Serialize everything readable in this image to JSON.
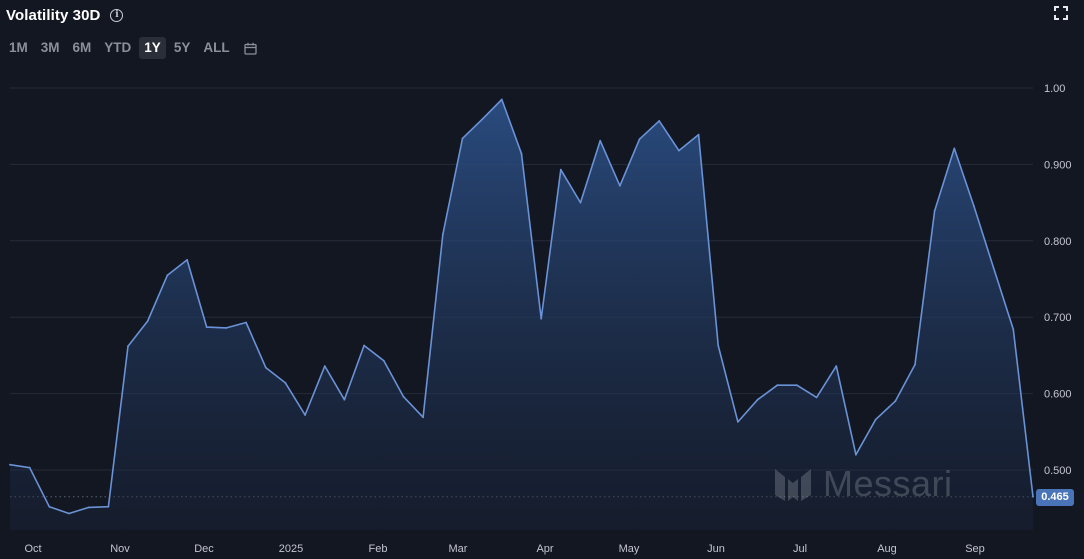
{
  "header": {
    "title": "Volatility 30D",
    "info_icon": "info-icon",
    "expand_icon": "expand-icon"
  },
  "ranges": {
    "items": [
      "1M",
      "3M",
      "6M",
      "YTD",
      "1Y",
      "5Y",
      "ALL"
    ],
    "active": "1Y",
    "calendar_icon": "calendar-icon"
  },
  "watermark": {
    "text": "Messari"
  },
  "colors": {
    "background": "#131722",
    "line": "#6a92d6",
    "tag": "#4a74b8"
  },
  "chart_data": {
    "type": "area",
    "title": "Volatility 30D",
    "ylim": [
      0.43,
      1.01
    ],
    "yticks": [
      1.0,
      0.9,
      0.8,
      0.7,
      0.6,
      0.5
    ],
    "ytick_labels": [
      "1.00",
      "0.900",
      "0.800",
      "0.700",
      "0.600",
      "0.500"
    ],
    "xticks": [
      "Oct",
      "Nov",
      "Dec",
      "2025",
      "Feb",
      "Mar",
      "Apr",
      "May",
      "Jun",
      "Jul",
      "Aug",
      "Sep"
    ],
    "last_value": 0.465,
    "last_value_label": "0.465",
    "grid": true,
    "values": [
      0.507,
      0.503,
      0.452,
      0.443,
      0.451,
      0.452,
      0.662,
      0.695,
      0.755,
      0.775,
      0.687,
      0.686,
      0.693,
      0.634,
      0.614,
      0.572,
      0.636,
      0.592,
      0.663,
      0.643,
      0.596,
      0.569,
      0.808,
      0.934,
      0.959,
      0.985,
      0.914,
      0.698,
      0.893,
      0.85,
      0.931,
      0.872,
      0.933,
      0.957,
      0.918,
      0.939,
      0.663,
      0.563,
      0.592,
      0.611,
      0.611,
      0.595,
      0.636,
      0.52,
      0.566,
      0.59,
      0.638,
      0.839,
      0.921,
      0.845,
      0.764,
      0.684,
      0.465
    ]
  }
}
